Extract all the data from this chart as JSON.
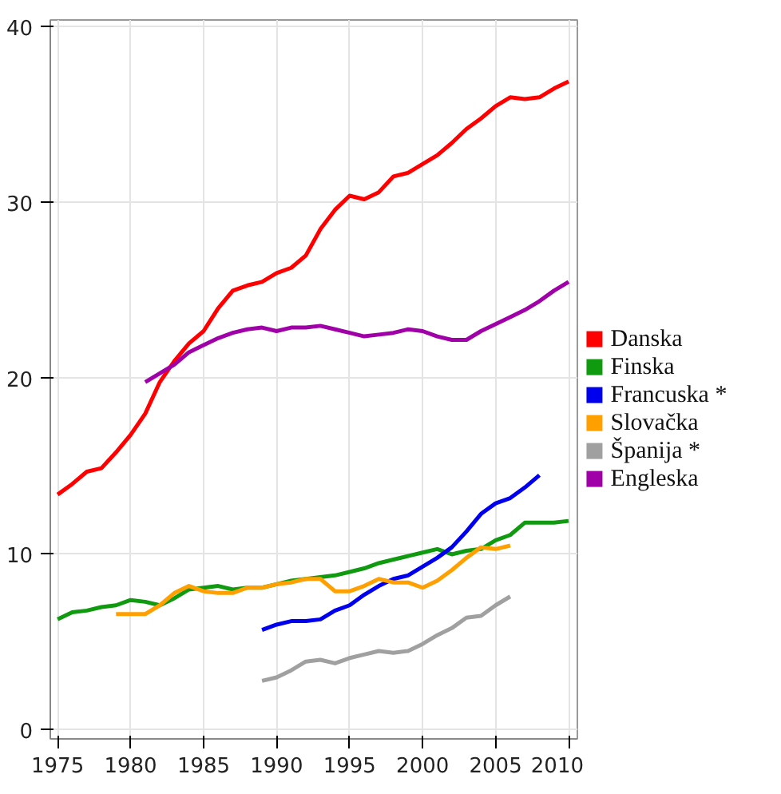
{
  "chart_data": {
    "type": "line",
    "xlim": [
      1974.5,
      2010.6
    ],
    "ylim": [
      -0.5,
      40.4
    ],
    "xticks": [
      1975,
      1980,
      1985,
      1990,
      1995,
      2000,
      2005,
      2010
    ],
    "yticks": [
      0,
      10,
      20,
      30,
      40
    ],
    "grid": true,
    "legend": "right",
    "marker": "none",
    "line_style": "solid",
    "series": [
      {
        "name": "Danska",
        "color": "#ff0000",
        "x": [
          1975,
          1976,
          1977,
          1978,
          1979,
          1980,
          1981,
          1982,
          1983,
          1984,
          1985,
          1986,
          1987,
          1988,
          1989,
          1990,
          1991,
          1992,
          1993,
          1994,
          1995,
          1996,
          1997,
          1998,
          1999,
          2000,
          2001,
          2002,
          2003,
          2004,
          2005,
          2006,
          2007,
          2008,
          2009,
          2010
        ],
        "values": [
          13.4,
          14.0,
          14.7,
          14.9,
          15.8,
          16.8,
          18.0,
          19.8,
          21.0,
          22.0,
          22.7,
          24.0,
          25.0,
          25.3,
          25.5,
          26.0,
          26.3,
          27.0,
          28.5,
          29.6,
          30.4,
          30.2,
          30.6,
          31.5,
          31.7,
          32.2,
          32.7,
          33.4,
          34.2,
          34.8,
          35.5,
          36.0,
          35.9,
          36.0,
          36.5,
          36.9
        ]
      },
      {
        "name": "Finska",
        "color": "#109a10",
        "x": [
          1975,
          1976,
          1977,
          1978,
          1979,
          1980,
          1981,
          1982,
          1983,
          1984,
          1985,
          1986,
          1987,
          1988,
          1989,
          1990,
          1991,
          1992,
          1993,
          1994,
          1995,
          1996,
          1997,
          1998,
          1999,
          2000,
          2001,
          2002,
          2003,
          2004,
          2005,
          2006,
          2007,
          2008,
          2009,
          2010
        ],
        "values": [
          6.3,
          6.7,
          6.8,
          7.0,
          7.1,
          7.4,
          7.3,
          7.1,
          7.5,
          8.0,
          8.1,
          8.2,
          8.0,
          8.1,
          8.1,
          8.3,
          8.5,
          8.6,
          8.7,
          8.8,
          9.0,
          9.2,
          9.5,
          9.7,
          9.9,
          10.1,
          10.3,
          10.0,
          10.2,
          10.3,
          10.8,
          11.1,
          11.8,
          11.8,
          11.8,
          11.9
        ]
      },
      {
        "name": "Francuska *",
        "color": "#0000ee",
        "x": [
          1989,
          1990,
          1991,
          1992,
          1993,
          1994,
          1995,
          1996,
          1997,
          1998,
          1999,
          2000,
          2001,
          2002,
          2003,
          2004,
          2005,
          2006,
          2007,
          2008
        ],
        "values": [
          5.7,
          6.0,
          6.2,
          6.2,
          6.3,
          6.8,
          7.1,
          7.7,
          8.2,
          8.6,
          8.8,
          9.3,
          9.8,
          10.4,
          11.3,
          12.3,
          12.9,
          13.2,
          13.8,
          14.5
        ]
      },
      {
        "name": "Slovačka",
        "color": "#ffa000",
        "x": [
          1979,
          1980,
          1981,
          1982,
          1983,
          1984,
          1985,
          1986,
          1987,
          1988,
          1989,
          1990,
          1991,
          1992,
          1993,
          1994,
          1995,
          1996,
          1997,
          1998,
          1999,
          2000,
          2001,
          2002,
          2003,
          2004,
          2005,
          2006
        ],
        "values": [
          6.6,
          6.6,
          6.6,
          7.1,
          7.8,
          8.2,
          7.9,
          7.8,
          7.8,
          8.1,
          8.1,
          8.3,
          8.4,
          8.6,
          8.6,
          7.9,
          7.9,
          8.2,
          8.6,
          8.4,
          8.4,
          8.1,
          8.5,
          9.1,
          9.8,
          10.4,
          10.3,
          10.5
        ]
      },
      {
        "name": "Španija *",
        "color": "#a0a0a0",
        "x": [
          1989,
          1990,
          1991,
          1992,
          1993,
          1994,
          1995,
          1996,
          1997,
          1998,
          1999,
          2000,
          2001,
          2002,
          2003,
          2004,
          2005,
          2006
        ],
        "values": [
          2.8,
          3.0,
          3.4,
          3.9,
          4.0,
          3.8,
          4.1,
          4.3,
          4.5,
          4.4,
          4.5,
          4.9,
          5.4,
          5.8,
          6.4,
          6.5,
          7.1,
          7.6
        ]
      },
      {
        "name": "Engleska",
        "color": "#a000a8",
        "x": [
          1981,
          1982,
          1983,
          1984,
          1985,
          1986,
          1987,
          1988,
          1989,
          1990,
          1991,
          1992,
          1993,
          1994,
          1995,
          1996,
          1997,
          1998,
          1999,
          2000,
          2001,
          2002,
          2003,
          2004,
          2005,
          2006,
          2007,
          2008,
          2009,
          2010
        ],
        "values": [
          19.8,
          20.3,
          20.8,
          21.5,
          21.9,
          22.3,
          22.6,
          22.8,
          22.9,
          22.7,
          22.9,
          22.9,
          23.0,
          22.8,
          22.6,
          22.4,
          22.5,
          22.6,
          22.8,
          22.7,
          22.4,
          22.2,
          22.2,
          22.7,
          23.1,
          23.5,
          23.9,
          24.4,
          25.0,
          25.5
        ]
      }
    ]
  }
}
